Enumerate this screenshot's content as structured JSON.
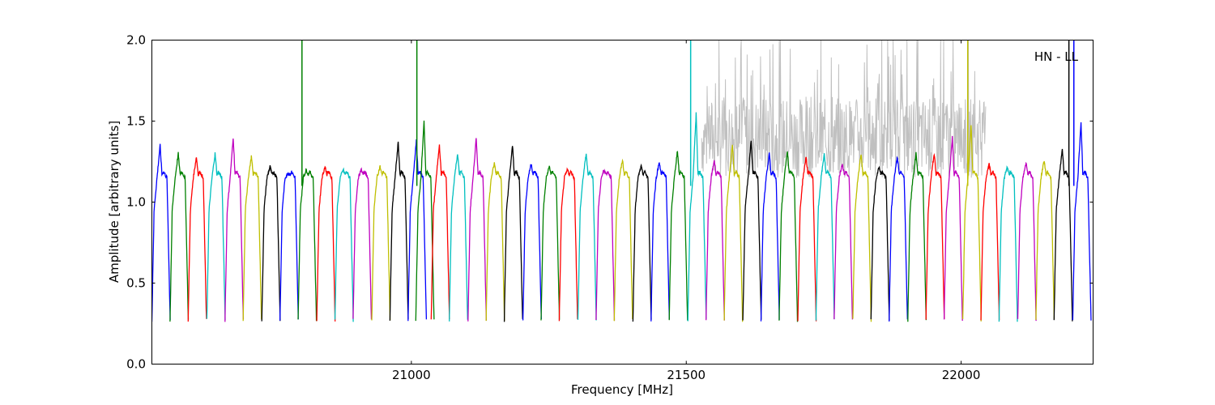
{
  "chart_data": {
    "type": "line",
    "title": "",
    "annotation": "HN - LL",
    "xlabel": "Frequency [MHz]",
    "ylabel": "Amplitude [arbitrary units]",
    "xlim": [
      20528,
      22240
    ],
    "ylim": [
      0.0,
      2.0
    ],
    "x_ticks": [
      {
        "value": 21000,
        "label": "21000"
      },
      {
        "value": 21500,
        "label": "21500"
      },
      {
        "value": 22000,
        "label": "22000"
      }
    ],
    "y_ticks": [
      {
        "value": 0.0,
        "label": "0.0"
      },
      {
        "value": 0.5,
        "label": "0.5"
      },
      {
        "value": 1.0,
        "label": "1.0"
      },
      {
        "value": 1.5,
        "label": "1.5"
      },
      {
        "value": 2.0,
        "label": "2.0"
      }
    ],
    "grid": false,
    "palette": [
      "#0000ff",
      "#008000",
      "#ff0000",
      "#00bfbf",
      "#bf00bf",
      "#bfbf00",
      "#000000"
    ],
    "noise_color": "#c0c0c0",
    "channel_width_mhz": 33.3,
    "channels": [
      {
        "start": 20528,
        "color": "#0000ff",
        "peak": 1.35
      },
      {
        "start": 20561,
        "color": "#008000",
        "peak": 1.3
      },
      {
        "start": 20594,
        "color": "#ff0000",
        "peak": 1.28
      },
      {
        "start": 20628,
        "color": "#00bfbf",
        "peak": 1.3
      },
      {
        "start": 20661,
        "color": "#bf00bf",
        "peak": 1.4
      },
      {
        "start": 20694,
        "color": "#bfbf00",
        "peak": 1.28
      },
      {
        "start": 20728,
        "color": "#000000",
        "peak": 1.22
      },
      {
        "start": 20761,
        "color": "#0000ff",
        "peak": 1.18
      },
      {
        "start": 20794,
        "color": "#008000",
        "peak": 1.2,
        "spike": 2.0
      },
      {
        "start": 20828,
        "color": "#ff0000",
        "peak": 1.22
      },
      {
        "start": 20861,
        "color": "#00bfbf",
        "peak": 1.2
      },
      {
        "start": 20894,
        "color": "#bf00bf",
        "peak": 1.2,
        "spike": 1.44
      },
      {
        "start": 20928,
        "color": "#bfbf00",
        "peak": 1.22
      },
      {
        "start": 20961,
        "color": "#000000",
        "peak": 1.37
      },
      {
        "start": 20994,
        "color": "#0000ff",
        "peak": 1.38
      },
      {
        "start": 21008,
        "color": "#008000",
        "peak": 1.5,
        "spike": 2.0
      },
      {
        "start": 21036,
        "color": "#ff0000",
        "peak": 1.36
      },
      {
        "start": 21069,
        "color": "#00bfbf",
        "peak": 1.3
      },
      {
        "start": 21103,
        "color": "#bf00bf",
        "peak": 1.4
      },
      {
        "start": 21136,
        "color": "#bfbf00",
        "peak": 1.24
      },
      {
        "start": 21169,
        "color": "#000000",
        "peak": 1.35
      },
      {
        "start": 21203,
        "color": "#0000ff",
        "peak": 1.24
      },
      {
        "start": 21236,
        "color": "#008000",
        "peak": 1.22
      },
      {
        "start": 21269,
        "color": "#ff0000",
        "peak": 1.2
      },
      {
        "start": 21303,
        "color": "#00bfbf",
        "peak": 1.3
      },
      {
        "start": 21336,
        "color": "#bf00bf",
        "peak": 1.2
      },
      {
        "start": 21369,
        "color": "#bfbf00",
        "peak": 1.26
      },
      {
        "start": 21403,
        "color": "#000000",
        "peak": 1.22
      },
      {
        "start": 21436,
        "color": "#0000ff",
        "peak": 1.25
      },
      {
        "start": 21469,
        "color": "#008000",
        "peak": 1.32
      },
      {
        "start": 21503,
        "color": "#00bfbf",
        "peak": 1.55,
        "spike": 2.0
      },
      {
        "start": 21536,
        "color": "#bf00bf",
        "peak": 1.26
      },
      {
        "start": 21569,
        "color": "#bfbf00",
        "peak": 1.36
      },
      {
        "start": 21603,
        "color": "#000000",
        "peak": 1.38
      },
      {
        "start": 21636,
        "color": "#0000ff",
        "peak": 1.3
      },
      {
        "start": 21669,
        "color": "#008000",
        "peak": 1.32
      },
      {
        "start": 21703,
        "color": "#ff0000",
        "peak": 1.28
      },
      {
        "start": 21736,
        "color": "#00bfbf",
        "peak": 1.3
      },
      {
        "start": 21769,
        "color": "#bf00bf",
        "peak": 1.24
      },
      {
        "start": 21803,
        "color": "#bfbf00",
        "peak": 1.3
      },
      {
        "start": 21836,
        "color": "#000000",
        "peak": 1.22
      },
      {
        "start": 21869,
        "color": "#0000ff",
        "peak": 1.28
      },
      {
        "start": 21903,
        "color": "#008000",
        "peak": 1.3
      },
      {
        "start": 21936,
        "color": "#ff0000",
        "peak": 1.3
      },
      {
        "start": 21969,
        "color": "#bf00bf",
        "peak": 1.4
      },
      {
        "start": 22003,
        "color": "#bfbf00",
        "peak": 1.48,
        "spike": 2.0
      },
      {
        "start": 22036,
        "color": "#ff0000",
        "peak": 1.24
      },
      {
        "start": 22069,
        "color": "#00bfbf",
        "peak": 1.22
      },
      {
        "start": 22103,
        "color": "#bf00bf",
        "peak": 1.24
      },
      {
        "start": 22136,
        "color": "#bfbf00",
        "peak": 1.26
      },
      {
        "start": 22169,
        "color": "#000000",
        "peak": 1.33
      },
      {
        "start": 22203,
        "color": "#0000ff",
        "peak": 1.5
      }
    ],
    "noise_band": {
      "x_start": 21528,
      "x_end": 22045,
      "max": 2.0
    },
    "spikes": [
      {
        "x": 20801,
        "y": 2.0,
        "color": "#008000"
      },
      {
        "x": 21010,
        "y": 2.0,
        "color": "#008000"
      },
      {
        "x": 21508,
        "y": 2.0,
        "color": "#00bfbf"
      },
      {
        "x": 22012,
        "y": 2.0,
        "color": "#bfbf00"
      },
      {
        "x": 22196,
        "y": 2.0,
        "color": "#000000"
      },
      {
        "x": 22205,
        "y": 2.0,
        "color": "#0000ff"
      }
    ]
  }
}
